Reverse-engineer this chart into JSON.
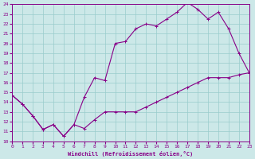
{
  "xlabel": "Windchill (Refroidissement éolien,°C)",
  "bg_color": "#cce8e8",
  "line_color": "#880088",
  "grid_color": "#99cccc",
  "xmin": 0,
  "xmax": 23,
  "ymin": 10,
  "ymax": 24,
  "line1_x": [
    0,
    1,
    2,
    3,
    4,
    5,
    6,
    7,
    8,
    9,
    10,
    11,
    12,
    13,
    14,
    15,
    16,
    17,
    18,
    19,
    20,
    21,
    22,
    23
  ],
  "line1_y": [
    14.7,
    13.8,
    12.6,
    11.2,
    11.7,
    10.5,
    11.7,
    11.3,
    12.2,
    13.0,
    13.0,
    13.0,
    13.0,
    13.5,
    14.0,
    14.5,
    15.0,
    15.5,
    16.0,
    16.5,
    16.5,
    16.5,
    16.8,
    17.0
  ],
  "line2_x": [
    0,
    1,
    2,
    3,
    4,
    5,
    6,
    7,
    8,
    9,
    10,
    11,
    12,
    13,
    14,
    15,
    16,
    17,
    18,
    19,
    20,
    21,
    22,
    23
  ],
  "line2_y": [
    14.7,
    13.8,
    12.6,
    11.2,
    11.7,
    10.5,
    11.7,
    14.5,
    16.5,
    16.2,
    20.0,
    20.2,
    21.5,
    22.0,
    21.8,
    22.5,
    23.2,
    24.2,
    23.5,
    22.5,
    23.2,
    21.5,
    19.0,
    17.0
  ]
}
